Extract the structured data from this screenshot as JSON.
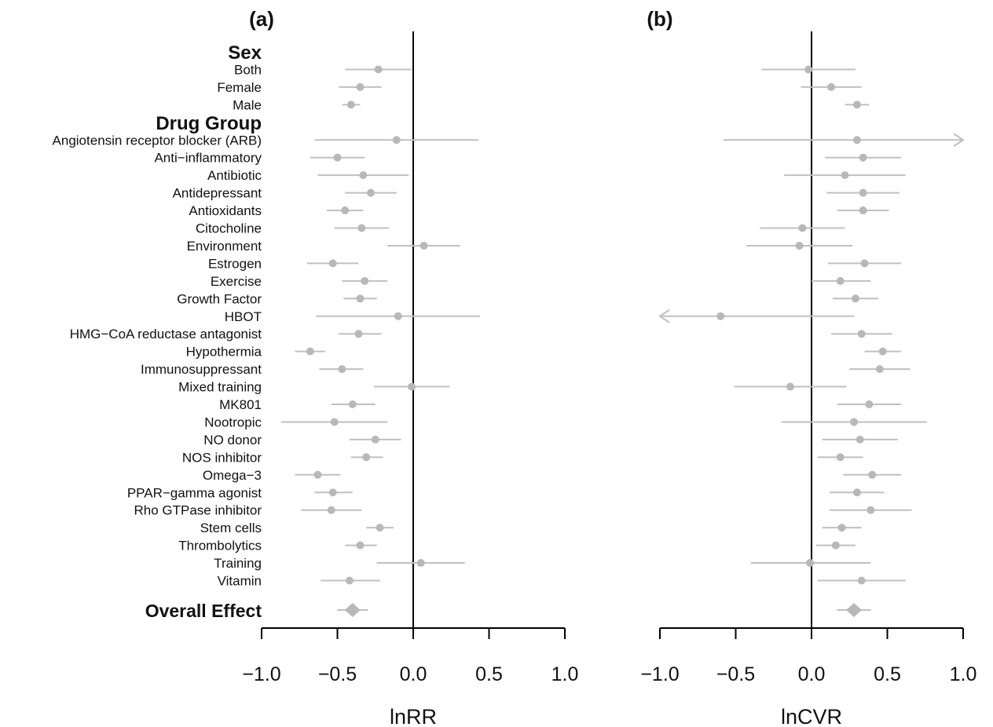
{
  "colors": {
    "ci": "#c0c0c0",
    "point": "#b8b8b8",
    "axis": "#000000",
    "text": "#111111"
  },
  "chart_data": {
    "type": "forest",
    "rows": [
      {
        "label": "Sex",
        "kind": "group"
      },
      {
        "label": "Both",
        "kind": "item"
      },
      {
        "label": "Female",
        "kind": "item"
      },
      {
        "label": "Male",
        "kind": "item"
      },
      {
        "label": "Drug Group",
        "kind": "group"
      },
      {
        "label": "Angiotensin receptor blocker (ARB)",
        "kind": "item"
      },
      {
        "label": "Anti−inflammatory",
        "kind": "item"
      },
      {
        "label": "Antibiotic",
        "kind": "item"
      },
      {
        "label": "Antidepressant",
        "kind": "item"
      },
      {
        "label": "Antioxidants",
        "kind": "item"
      },
      {
        "label": "Citocholine",
        "kind": "item"
      },
      {
        "label": "Environment",
        "kind": "item"
      },
      {
        "label": "Estrogen",
        "kind": "item"
      },
      {
        "label": "Exercise",
        "kind": "item"
      },
      {
        "label": "Growth Factor",
        "kind": "item"
      },
      {
        "label": "HBOT",
        "kind": "item"
      },
      {
        "label": "HMG−CoA reductase antagonist",
        "kind": "item"
      },
      {
        "label": "Hypothermia",
        "kind": "item"
      },
      {
        "label": "Immunosuppressant",
        "kind": "item"
      },
      {
        "label": "Mixed training",
        "kind": "item"
      },
      {
        "label": "MK801",
        "kind": "item"
      },
      {
        "label": "Nootropic",
        "kind": "item"
      },
      {
        "label": "NO donor",
        "kind": "item"
      },
      {
        "label": "NOS inhibitor",
        "kind": "item"
      },
      {
        "label": "Omega−3",
        "kind": "item"
      },
      {
        "label": "PPAR−gamma agonist",
        "kind": "item"
      },
      {
        "label": "Rho GTPase inhibitor",
        "kind": "item"
      },
      {
        "label": "Stem cells",
        "kind": "item"
      },
      {
        "label": "Thrombolytics",
        "kind": "item"
      },
      {
        "label": "Training",
        "kind": "item"
      },
      {
        "label": "Vitamin",
        "kind": "item"
      },
      {
        "label": "Overall Effect",
        "kind": "overall"
      }
    ],
    "panels": [
      {
        "panel_label": "(a)",
        "xlabel": "lnRR",
        "xlim": [
          -1.0,
          1.0
        ],
        "xticks": [
          "−1.0",
          "−0.5",
          "0.0",
          "0.5",
          "1.0"
        ],
        "xtick_values": [
          -1.0,
          -0.5,
          0.0,
          0.5,
          1.0
        ],
        "reference_line": 0,
        "estimates": [
          null,
          {
            "est": -0.23,
            "lo": -0.45,
            "hi": -0.01
          },
          {
            "est": -0.35,
            "lo": -0.49,
            "hi": -0.21
          },
          {
            "est": -0.41,
            "lo": -0.47,
            "hi": -0.35
          },
          null,
          {
            "est": -0.11,
            "lo": -0.65,
            "hi": 0.43
          },
          {
            "est": -0.5,
            "lo": -0.68,
            "hi": -0.32
          },
          {
            "est": -0.33,
            "lo": -0.63,
            "hi": -0.03
          },
          {
            "est": -0.28,
            "lo": -0.45,
            "hi": -0.11
          },
          {
            "est": -0.45,
            "lo": -0.57,
            "hi": -0.33
          },
          {
            "est": -0.34,
            "lo": -0.52,
            "hi": -0.16
          },
          {
            "est": 0.07,
            "lo": -0.17,
            "hi": 0.31
          },
          {
            "est": -0.53,
            "lo": -0.7,
            "hi": -0.36
          },
          {
            "est": -0.32,
            "lo": -0.47,
            "hi": -0.17
          },
          {
            "est": -0.35,
            "lo": -0.46,
            "hi": -0.24
          },
          {
            "est": -0.1,
            "lo": -0.64,
            "hi": 0.44
          },
          {
            "est": -0.36,
            "lo": -0.49,
            "hi": -0.21
          },
          {
            "est": -0.68,
            "lo": -0.78,
            "hi": -0.58
          },
          {
            "est": -0.47,
            "lo": -0.62,
            "hi": -0.33
          },
          {
            "est": -0.01,
            "lo": -0.26,
            "hi": 0.24
          },
          {
            "est": -0.4,
            "lo": -0.54,
            "hi": -0.25
          },
          {
            "est": -0.52,
            "lo": -0.87,
            "hi": -0.17
          },
          {
            "est": -0.25,
            "lo": -0.42,
            "hi": -0.08
          },
          {
            "est": -0.31,
            "lo": -0.41,
            "hi": -0.2
          },
          {
            "est": -0.63,
            "lo": -0.78,
            "hi": -0.48
          },
          {
            "est": -0.53,
            "lo": -0.65,
            "hi": -0.4
          },
          {
            "est": -0.54,
            "lo": -0.74,
            "hi": -0.34
          },
          {
            "est": -0.22,
            "lo": -0.31,
            "hi": -0.13
          },
          {
            "est": -0.35,
            "lo": -0.45,
            "hi": -0.24
          },
          {
            "est": 0.05,
            "lo": -0.24,
            "hi": 0.34
          },
          {
            "est": -0.42,
            "lo": -0.61,
            "hi": -0.22
          },
          {
            "est": -0.4,
            "lo": -0.45,
            "hi": -0.35,
            "shape": "diamond"
          }
        ]
      },
      {
        "panel_label": "(b)",
        "xlabel": "lnCVR",
        "xlim": [
          -1.0,
          1.0
        ],
        "xticks": [
          "−1.0",
          "−0.5",
          "0.0",
          "0.5",
          "1.0"
        ],
        "xtick_values": [
          -1.0,
          -0.5,
          0.0,
          0.5,
          1.0
        ],
        "reference_line": 0,
        "estimates": [
          null,
          {
            "est": -0.02,
            "lo": -0.33,
            "hi": 0.29
          },
          {
            "est": 0.13,
            "lo": -0.07,
            "hi": 0.33
          },
          {
            "est": 0.3,
            "lo": 0.22,
            "hi": 0.38
          },
          null,
          {
            "est": 0.3,
            "lo": -0.58,
            "hi": 1.0,
            "arrow": "right"
          },
          {
            "est": 0.34,
            "lo": 0.09,
            "hi": 0.59
          },
          {
            "est": 0.22,
            "lo": -0.18,
            "hi": 0.62
          },
          {
            "est": 0.34,
            "lo": 0.1,
            "hi": 0.58
          },
          {
            "est": 0.34,
            "lo": 0.17,
            "hi": 0.51
          },
          {
            "est": -0.06,
            "lo": -0.34,
            "hi": 0.22
          },
          {
            "est": -0.08,
            "lo": -0.43,
            "hi": 0.27
          },
          {
            "est": 0.35,
            "lo": 0.11,
            "hi": 0.59
          },
          {
            "est": 0.19,
            "lo": 0.0,
            "hi": 0.39
          },
          {
            "est": 0.29,
            "lo": 0.14,
            "hi": 0.44
          },
          {
            "est": -0.6,
            "lo": -1.0,
            "hi": 0.28,
            "arrow": "left"
          },
          {
            "est": 0.33,
            "lo": 0.13,
            "hi": 0.53
          },
          {
            "est": 0.47,
            "lo": 0.35,
            "hi": 0.59
          },
          {
            "est": 0.45,
            "lo": 0.25,
            "hi": 0.65
          },
          {
            "est": -0.14,
            "lo": -0.51,
            "hi": 0.23
          },
          {
            "est": 0.38,
            "lo": 0.17,
            "hi": 0.59
          },
          {
            "est": 0.28,
            "lo": -0.2,
            "hi": 0.76
          },
          {
            "est": 0.32,
            "lo": 0.07,
            "hi": 0.57
          },
          {
            "est": 0.19,
            "lo": 0.04,
            "hi": 0.34
          },
          {
            "est": 0.4,
            "lo": 0.21,
            "hi": 0.59
          },
          {
            "est": 0.3,
            "lo": 0.12,
            "hi": 0.48
          },
          {
            "est": 0.39,
            "lo": 0.12,
            "hi": 0.66
          },
          {
            "est": 0.2,
            "lo": 0.07,
            "hi": 0.33
          },
          {
            "est": 0.16,
            "lo": 0.03,
            "hi": 0.29
          },
          {
            "est": -0.01,
            "lo": -0.4,
            "hi": 0.39
          },
          {
            "est": 0.33,
            "lo": 0.04,
            "hi": 0.62
          },
          {
            "est": 0.28,
            "lo": 0.22,
            "hi": 0.34,
            "shape": "diamond"
          }
        ]
      }
    ]
  }
}
